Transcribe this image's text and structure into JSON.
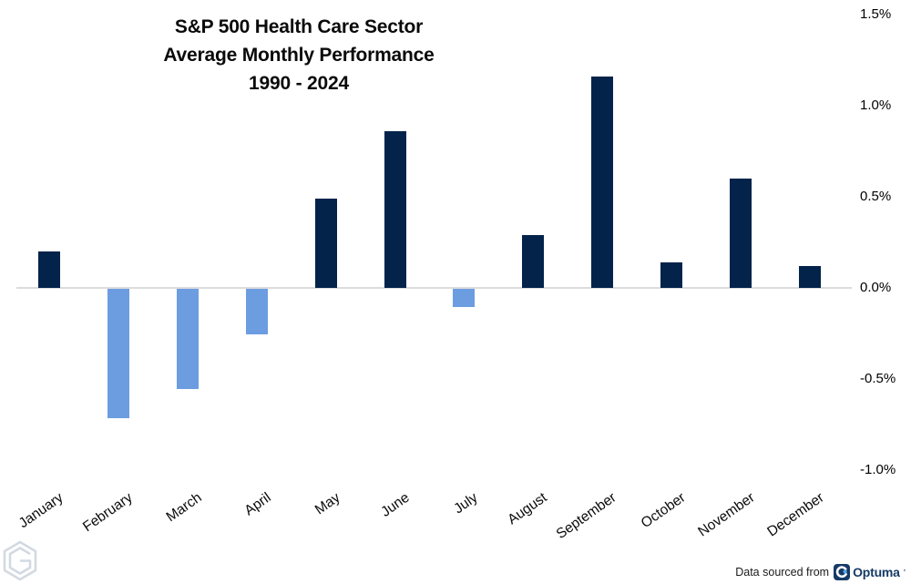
{
  "title": {
    "line1": "S&P 500 Health Care Sector",
    "line2": "Average Monthly Performance",
    "line3": "1990 - 2024"
  },
  "footer": {
    "source_text": "Data sourced from",
    "source_brand": "Optuma",
    "brand_mark": "’"
  },
  "colors": {
    "positive": "#04234b",
    "negative": "#6c9de0",
    "axis_line": "#dcdcdc",
    "watermark": "#d3d9e2",
    "brand_navy": "#163a66",
    "brand_accent": "#5aa7e0"
  },
  "chart_data": {
    "type": "bar",
    "title": "S&P 500 Health Care Sector Average Monthly Performance 1990 - 2024",
    "categories": [
      "January",
      "February",
      "March",
      "April",
      "May",
      "June",
      "July",
      "August",
      "September",
      "October",
      "November",
      "December"
    ],
    "values": [
      0.2,
      -0.71,
      -0.55,
      -0.25,
      0.49,
      0.86,
      -0.1,
      0.29,
      1.16,
      0.14,
      0.6,
      0.12
    ],
    "unit": "%",
    "xlabel": "",
    "ylabel": "",
    "ylim": [
      -1.0,
      1.5
    ],
    "y_ticks": [
      1.5,
      1.0,
      0.5,
      0.0,
      -0.5,
      -1.0
    ],
    "y_tick_labels": [
      "1.5%",
      "1.0%",
      "0.5%",
      "0.0%",
      "-0.5%",
      "-1.0%"
    ],
    "grid": false,
    "legend": "none",
    "bar_color_positive": "#04234b",
    "bar_color_negative": "#6c9de0",
    "x_label_rotation_deg": -35,
    "y_axis_side": "right"
  }
}
